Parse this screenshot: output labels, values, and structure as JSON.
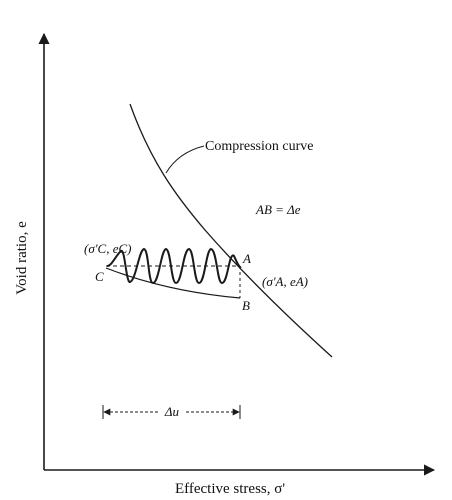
{
  "axes": {
    "x_title": "Effective stress, σ'",
    "y_title": "Void ratio, e"
  },
  "labels": {
    "compression_curve": "Compression curve",
    "relation": "AB = Δe",
    "point_a": "A",
    "point_b": "B",
    "point_c": "C",
    "coord_a": "(σ'A, eA)",
    "coord_c": "(σ'C, eC)",
    "delta_u": "Δu"
  },
  "colors": {
    "ink": "#1a1a1a",
    "background": "#ffffff"
  }
}
